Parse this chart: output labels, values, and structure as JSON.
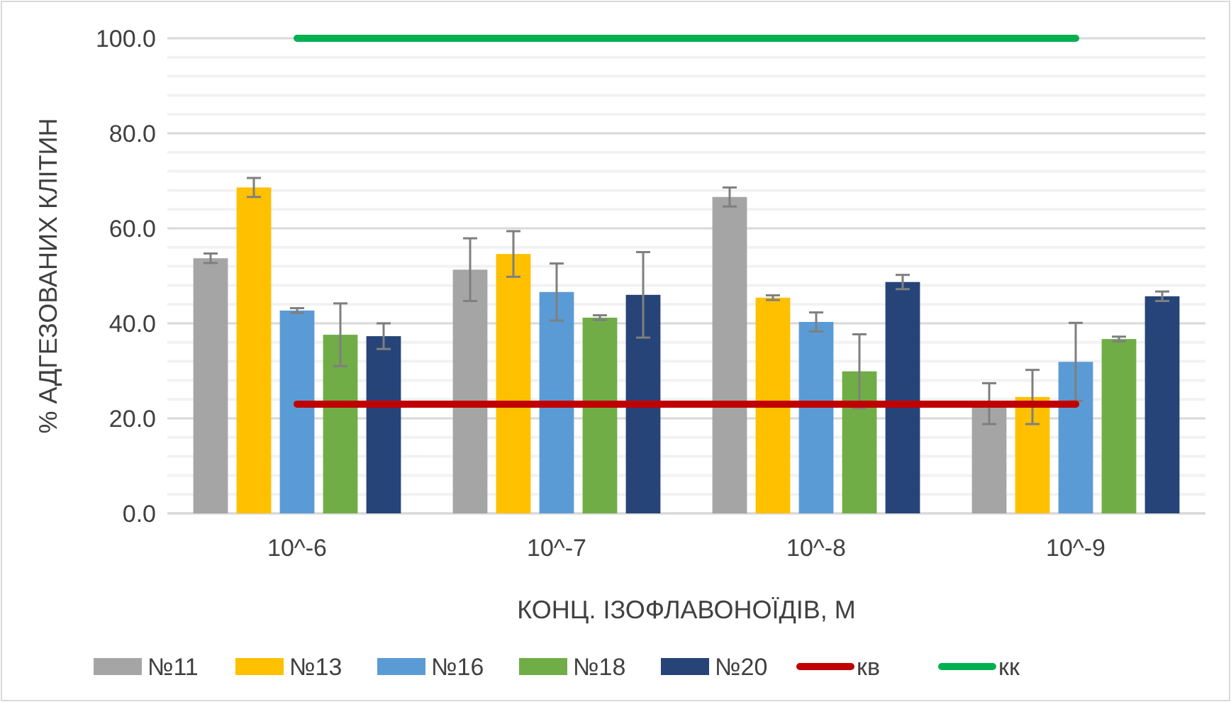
{
  "chart_data": {
    "type": "bar",
    "xlabel": "КОНЦ. ІЗОФЛАВОНОЇДІВ, М",
    "ylabel": "% АДГЕЗОВАНИХ КЛІТИН",
    "categories": [
      "10^-6",
      "10^-7",
      "10^-8",
      "10^-9"
    ],
    "series": [
      {
        "name": "№11",
        "color": "#a5a5a5",
        "values": [
          53.7,
          51.3,
          66.6,
          23.1
        ],
        "errors": [
          1,
          6.6,
          2,
          4.3
        ]
      },
      {
        "name": "№13",
        "color": "#ffc000",
        "values": [
          68.6,
          54.6,
          45.4,
          24.5
        ],
        "errors": [
          2,
          4.8,
          0.5,
          5.7
        ]
      },
      {
        "name": "№16",
        "color": "#5b9bd5",
        "values": [
          42.7,
          46.6,
          40.3,
          31.9
        ],
        "errors": [
          0.5,
          6,
          2,
          8.2
        ]
      },
      {
        "name": "№18",
        "color": "#70ad47",
        "values": [
          37.6,
          41.2,
          29.9,
          36.7
        ],
        "errors": [
          6.6,
          0.5,
          7.8,
          0.5
        ]
      },
      {
        "name": "№20",
        "color": "#264478",
        "values": [
          37.3,
          46,
          48.7,
          45.7
        ],
        "errors": [
          2.7,
          9,
          1.5,
          1
        ]
      },
      {
        "name": "кв",
        "type": "line",
        "color": "#c00000",
        "values": [
          23,
          23,
          23,
          23
        ]
      },
      {
        "name": "кк",
        "type": "line",
        "color": "#00b050",
        "values": [
          100,
          100,
          100,
          100
        ]
      }
    ],
    "ylim": [
      0,
      100
    ],
    "yticks": [
      {
        "value": 0,
        "label": "0.0"
      },
      {
        "value": 4,
        "label": null
      },
      {
        "value": 8,
        "label": null
      },
      {
        "value": 12,
        "label": null
      },
      {
        "value": 16,
        "label": null
      },
      {
        "value": 20,
        "label": "20.0"
      },
      {
        "value": 24,
        "label": null
      },
      {
        "value": 28,
        "label": null
      },
      {
        "value": 32,
        "label": null
      },
      {
        "value": 36,
        "label": null
      },
      {
        "value": 40,
        "label": "40.0"
      },
      {
        "value": 44,
        "label": null
      },
      {
        "value": 48,
        "label": null
      },
      {
        "value": 52,
        "label": null
      },
      {
        "value": 56,
        "label": null
      },
      {
        "value": 60,
        "label": "60.0"
      },
      {
        "value": 64,
        "label": null
      },
      {
        "value": 68,
        "label": null
      },
      {
        "value": 72,
        "label": null
      },
      {
        "value": 76,
        "label": null
      },
      {
        "value": 80,
        "label": "80.0"
      },
      {
        "value": 84,
        "label": null
      },
      {
        "value": 88,
        "label": null
      },
      {
        "value": 92,
        "label": null
      },
      {
        "value": 96,
        "label": null
      },
      {
        "value": 100,
        "label": "100.0"
      }
    ],
    "grid": "y",
    "legend": "bottom"
  }
}
